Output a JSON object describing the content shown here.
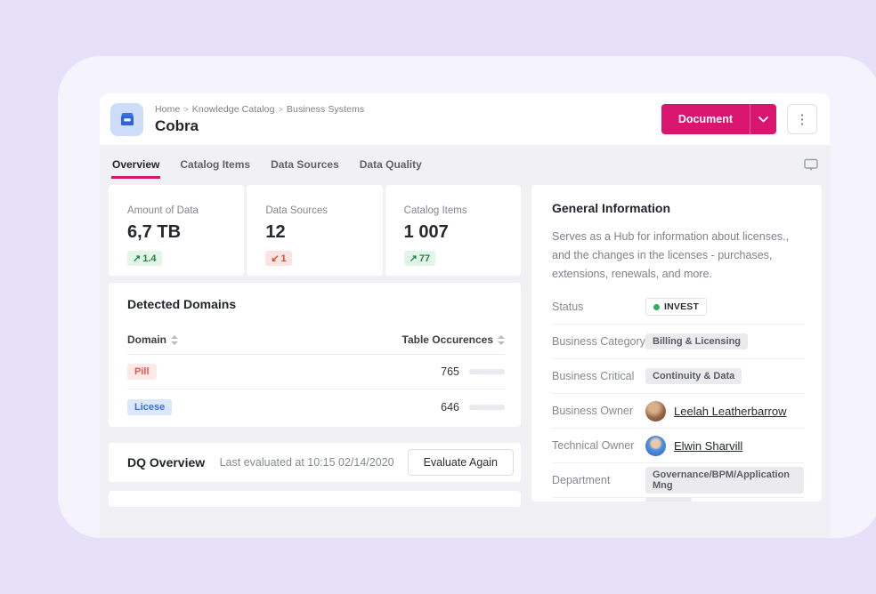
{
  "colors": {
    "accent_pink": "#d9156f",
    "page_lavender": "#e6e1f8",
    "container_lavender": "#f5f3fc",
    "content_gray": "#f1f0f5",
    "bar_blue": "#2b5de0",
    "positive_green": "#1d8842",
    "negative_red": "#e04438",
    "status_dot_green": "#2eaf5c"
  },
  "header": {
    "breadcrumb": [
      "Home",
      "Knowledge Catalog",
      "Business Systems"
    ],
    "breadcrumb_sep": ">",
    "title": "Cobra",
    "primary_action": "Document",
    "icon": "business-system-icon",
    "kebab_glyph": "⋮"
  },
  "tabs": {
    "items": [
      {
        "label": "Overview",
        "active": true
      },
      {
        "label": "Catalog Items",
        "active": false
      },
      {
        "label": "Data Sources",
        "active": false
      },
      {
        "label": "Data Quality",
        "active": false
      }
    ]
  },
  "stats": {
    "cards": [
      {
        "label": "Amount of Data",
        "value": "6,7 TB",
        "delta": "1.4",
        "trend": "up",
        "trend_glyph": "↗"
      },
      {
        "label": "Data Sources",
        "value": "12",
        "delta": "1",
        "trend": "down",
        "trend_glyph": "↙"
      },
      {
        "label": "Catalog Items",
        "value": "1 007",
        "delta": "77",
        "trend": "up",
        "trend_glyph": "↗"
      }
    ]
  },
  "detected_domains": {
    "title": "Detected Domains",
    "columns": [
      {
        "label": "Domain"
      },
      {
        "label": "Table Occurences"
      }
    ],
    "rows": [
      {
        "domain": "Pill",
        "badge_style": "red",
        "occurrences": "765",
        "bar_pct": 80
      },
      {
        "domain": "Licese",
        "badge_style": "blue",
        "occurrences": "646",
        "bar_pct": 57
      }
    ]
  },
  "dq_overview": {
    "title": "DQ Overview",
    "last_evaluated": "Last evaluated at 10:15 02/14/2020",
    "action": "Evaluate Again"
  },
  "general_information": {
    "title": "General Information",
    "description": "Serves as a Hub for information about licenses., and the changes in the licenses - purchases, extensions, renewals, and more.",
    "status": {
      "label": "Status",
      "value": "INVEST"
    },
    "business_category": {
      "label": "Business Category",
      "value": "Billing & Licensing"
    },
    "business_critical": {
      "label": "Business Critical",
      "value": "Continuity & Data"
    },
    "business_owner": {
      "label": "Business Owner",
      "value": "Leelah Leatherbarrow"
    },
    "technical_owner": {
      "label": "Technical Owner",
      "value": "Elwin Sharvill"
    },
    "department": {
      "label": "Department",
      "value": "Governance/BPM/Application Mng"
    }
  }
}
